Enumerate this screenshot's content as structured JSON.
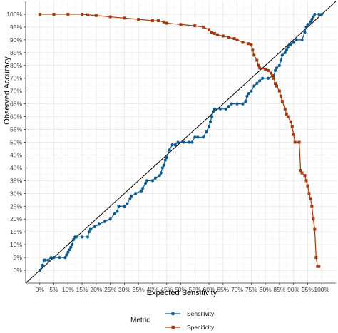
{
  "chart_data": {
    "type": "line",
    "xlabel": "Expected Sensitivity",
    "ylabel": "Observed Accuracy",
    "xlim": [
      -0.05,
      1.05
    ],
    "ylim": [
      -0.05,
      1.05
    ],
    "x_ticks": [
      "0%",
      "5%",
      "10%",
      "15%",
      "20%",
      "25%",
      "30%",
      "35%",
      "40%",
      "45%",
      "50%",
      "55%",
      "60%",
      "65%",
      "70%",
      "75%",
      "80%",
      "85%",
      "90%",
      "95%",
      "100%"
    ],
    "y_ticks": [
      "0%",
      "5%",
      "10%",
      "15%",
      "20%",
      "25%",
      "30%",
      "35%",
      "40%",
      "45%",
      "50%",
      "55%",
      "60%",
      "65%",
      "70%",
      "75%",
      "80%",
      "85%",
      "90%",
      "95%",
      "100%"
    ],
    "grid": true,
    "reference_line": {
      "type": "diagonal",
      "from": [
        -0.05,
        -0.05
      ],
      "to": [
        1.05,
        1.05
      ],
      "color": "#000000"
    },
    "legend": {
      "title": "Metric",
      "position": "bottom"
    },
    "series": [
      {
        "name": "Sensitivity",
        "color": "#0b5a8f",
        "marker": "circle",
        "points": [
          [
            0.0,
            0.0
          ],
          [
            0.01,
            0.02
          ],
          [
            0.015,
            0.04
          ],
          [
            0.02,
            0.04
          ],
          [
            0.03,
            0.04
          ],
          [
            0.04,
            0.05
          ],
          [
            0.05,
            0.05
          ],
          [
            0.07,
            0.05
          ],
          [
            0.09,
            0.05
          ],
          [
            0.095,
            0.06
          ],
          [
            0.1,
            0.07
          ],
          [
            0.105,
            0.08
          ],
          [
            0.11,
            0.09
          ],
          [
            0.115,
            0.1
          ],
          [
            0.12,
            0.12
          ],
          [
            0.125,
            0.13
          ],
          [
            0.13,
            0.13
          ],
          [
            0.15,
            0.13
          ],
          [
            0.17,
            0.13
          ],
          [
            0.175,
            0.15
          ],
          [
            0.18,
            0.16
          ],
          [
            0.195,
            0.17
          ],
          [
            0.21,
            0.18
          ],
          [
            0.23,
            0.19
          ],
          [
            0.25,
            0.2
          ],
          [
            0.265,
            0.22
          ],
          [
            0.275,
            0.23
          ],
          [
            0.28,
            0.25
          ],
          [
            0.3,
            0.25
          ],
          [
            0.31,
            0.26
          ],
          [
            0.32,
            0.28
          ],
          [
            0.325,
            0.29
          ],
          [
            0.34,
            0.3
          ],
          [
            0.36,
            0.31
          ],
          [
            0.365,
            0.32
          ],
          [
            0.375,
            0.34
          ],
          [
            0.38,
            0.35
          ],
          [
            0.4,
            0.35
          ],
          [
            0.41,
            0.36
          ],
          [
            0.425,
            0.37
          ],
          [
            0.43,
            0.38
          ],
          [
            0.435,
            0.4
          ],
          [
            0.44,
            0.41
          ],
          [
            0.445,
            0.43
          ],
          [
            0.45,
            0.44
          ],
          [
            0.46,
            0.47
          ],
          [
            0.47,
            0.49
          ],
          [
            0.48,
            0.49
          ],
          [
            0.49,
            0.5
          ],
          [
            0.51,
            0.5
          ],
          [
            0.53,
            0.5
          ],
          [
            0.54,
            0.5
          ],
          [
            0.55,
            0.52
          ],
          [
            0.56,
            0.52
          ],
          [
            0.58,
            0.52
          ],
          [
            0.59,
            0.54
          ],
          [
            0.6,
            0.56
          ],
          [
            0.605,
            0.58
          ],
          [
            0.61,
            0.6
          ],
          [
            0.615,
            0.62
          ],
          [
            0.62,
            0.63
          ],
          [
            0.64,
            0.63
          ],
          [
            0.66,
            0.63
          ],
          [
            0.67,
            0.64
          ],
          [
            0.68,
            0.65
          ],
          [
            0.7,
            0.65
          ],
          [
            0.72,
            0.65
          ],
          [
            0.73,
            0.66
          ],
          [
            0.735,
            0.68
          ],
          [
            0.74,
            0.69
          ],
          [
            0.75,
            0.7
          ],
          [
            0.76,
            0.72
          ],
          [
            0.77,
            0.73
          ],
          [
            0.78,
            0.74
          ],
          [
            0.79,
            0.75
          ],
          [
            0.81,
            0.75
          ],
          [
            0.83,
            0.76
          ],
          [
            0.835,
            0.78
          ],
          [
            0.84,
            0.79
          ],
          [
            0.85,
            0.8
          ],
          [
            0.855,
            0.82
          ],
          [
            0.86,
            0.84
          ],
          [
            0.87,
            0.85
          ],
          [
            0.875,
            0.86
          ],
          [
            0.88,
            0.87
          ],
          [
            0.885,
            0.88
          ],
          [
            0.89,
            0.88
          ],
          [
            0.9,
            0.89
          ],
          [
            0.91,
            0.9
          ],
          [
            0.93,
            0.9
          ],
          [
            0.94,
            0.93
          ],
          [
            0.945,
            0.95
          ],
          [
            0.95,
            0.96
          ],
          [
            0.96,
            0.97
          ],
          [
            0.965,
            0.98
          ],
          [
            0.97,
            0.99
          ],
          [
            0.975,
            1.0
          ],
          [
            0.99,
            1.0
          ],
          [
            1.0,
            1.0
          ]
        ]
      },
      {
        "name": "Specificity",
        "color": "#a33a0e",
        "marker": "square",
        "points": [
          [
            0.0,
            1.0
          ],
          [
            0.05,
            1.0
          ],
          [
            0.1,
            1.0
          ],
          [
            0.15,
            1.0
          ],
          [
            0.17,
            0.998
          ],
          [
            0.2,
            0.995
          ],
          [
            0.25,
            0.99
          ],
          [
            0.3,
            0.985
          ],
          [
            0.35,
            0.98
          ],
          [
            0.4,
            0.975
          ],
          [
            0.42,
            0.975
          ],
          [
            0.44,
            0.97
          ],
          [
            0.45,
            0.965
          ],
          [
            0.5,
            0.96
          ],
          [
            0.55,
            0.955
          ],
          [
            0.58,
            0.95
          ],
          [
            0.6,
            0.94
          ],
          [
            0.61,
            0.93
          ],
          [
            0.62,
            0.925
          ],
          [
            0.63,
            0.92
          ],
          [
            0.65,
            0.915
          ],
          [
            0.67,
            0.91
          ],
          [
            0.69,
            0.905
          ],
          [
            0.7,
            0.9
          ],
          [
            0.72,
            0.89
          ],
          [
            0.74,
            0.885
          ],
          [
            0.75,
            0.88
          ],
          [
            0.755,
            0.86
          ],
          [
            0.76,
            0.84
          ],
          [
            0.77,
            0.82
          ],
          [
            0.775,
            0.8
          ],
          [
            0.78,
            0.79
          ],
          [
            0.8,
            0.785
          ],
          [
            0.81,
            0.78
          ],
          [
            0.82,
            0.77
          ],
          [
            0.825,
            0.76
          ],
          [
            0.83,
            0.75
          ],
          [
            0.835,
            0.73
          ],
          [
            0.84,
            0.72
          ],
          [
            0.85,
            0.7
          ],
          [
            0.855,
            0.68
          ],
          [
            0.86,
            0.66
          ],
          [
            0.87,
            0.63
          ],
          [
            0.875,
            0.61
          ],
          [
            0.88,
            0.6
          ],
          [
            0.89,
            0.58
          ],
          [
            0.895,
            0.56
          ],
          [
            0.9,
            0.53
          ],
          [
            0.905,
            0.5
          ],
          [
            0.92,
            0.5
          ],
          [
            0.925,
            0.39
          ],
          [
            0.93,
            0.38
          ],
          [
            0.94,
            0.37
          ],
          [
            0.945,
            0.35
          ],
          [
            0.95,
            0.33
          ],
          [
            0.955,
            0.3
          ],
          [
            0.96,
            0.28
          ],
          [
            0.965,
            0.25
          ],
          [
            0.97,
            0.2
          ],
          [
            0.975,
            0.16
          ],
          [
            0.98,
            0.05
          ],
          [
            0.985,
            0.015
          ],
          [
            0.99,
            0.015
          ]
        ]
      }
    ]
  }
}
